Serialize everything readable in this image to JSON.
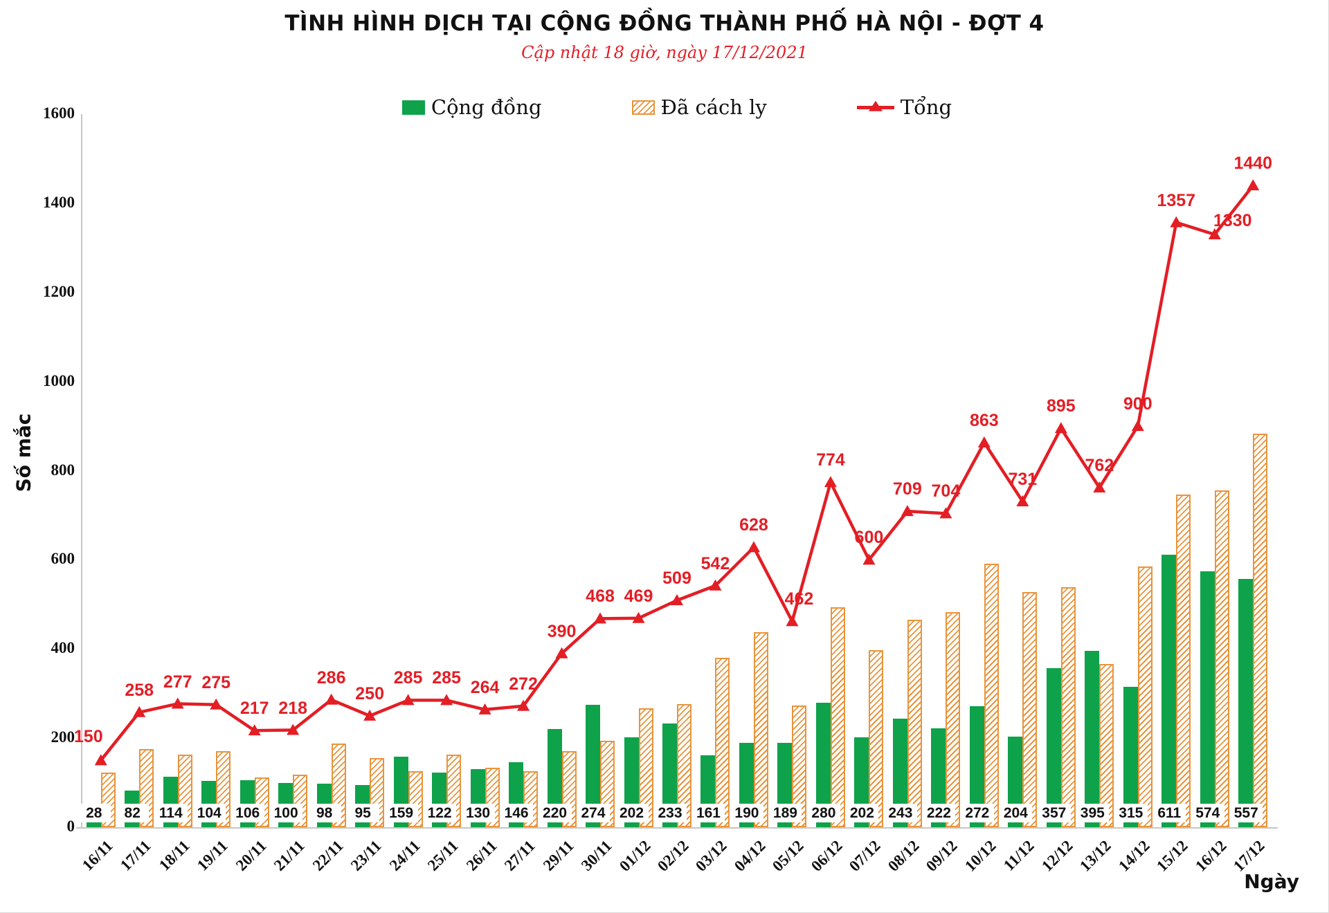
{
  "title": "TÌNH HÌNH DỊCH TẠI CỘNG ĐỒNG THÀNH PHỐ HÀ NỘI - ĐỢT 4",
  "subtitle": "Cập nhật 18 giờ, ngày 17/12/2021",
  "legend": {
    "items": [
      {
        "label": "Cộng đồng",
        "type": "bar-solid",
        "color": "#0ea24b"
      },
      {
        "label": "Đã cách ly",
        "type": "bar-hatched",
        "color": "#e8943c"
      },
      {
        "label": "Tổng",
        "type": "line-triangle",
        "color": "#e31e25"
      }
    ]
  },
  "colors": {
    "community_green": "#0ea24b",
    "quarantine_orange": "#e8943c",
    "total_red": "#e31e25",
    "axis_gray": "#c6c6c6"
  },
  "chart_data": {
    "type": "bar",
    "subtype": "grouped-bars-with-line",
    "title": "TÌNH HÌNH DỊCH TẠI CỘNG ĐỒNG THÀNH PHỐ HÀ NỘI - ĐỢT 4",
    "subtitle": "Cập nhật 18 giờ, ngày 17/12/2021",
    "xlabel": "Ngày",
    "ylabel": "Số mắc",
    "ylim": [
      0,
      1600
    ],
    "yticks": [
      0,
      200,
      400,
      600,
      800,
      1000,
      1200,
      1400,
      1600
    ],
    "grid": false,
    "legend_position": "top",
    "categories": [
      "16/11",
      "17/11",
      "18/11",
      "19/11",
      "20/11",
      "21/11",
      "22/11",
      "23/11",
      "24/11",
      "25/11",
      "26/11",
      "27/11",
      "29/11",
      "30/11",
      "01/12",
      "02/12",
      "03/12",
      "04/12",
      "05/12",
      "06/12",
      "07/12",
      "08/12",
      "09/12",
      "10/12",
      "11/12",
      "12/12",
      "13/12",
      "14/12",
      "15/12",
      "16/12",
      "17/12"
    ],
    "series": [
      {
        "name": "Cộng đồng",
        "type": "bar",
        "style": "solid-green",
        "values": [
          28,
          82,
          114,
          104,
          106,
          100,
          98,
          95,
          159,
          122,
          130,
          146,
          220,
          274,
          202,
          233,
          161,
          190,
          189,
          280,
          202,
          243,
          222,
          272,
          204,
          357,
          395,
          315,
          611,
          574,
          557
        ],
        "labels_shown": true
      },
      {
        "name": "Đã cách ly",
        "type": "bar",
        "style": "hatched-orange",
        "values": [
          122,
          176,
          163,
          171,
          111,
          118,
          188,
          155,
          126,
          163,
          134,
          126,
          170,
          194,
          267,
          276,
          381,
          438,
          273,
          494,
          398,
          466,
          482,
          591,
          527,
          538,
          367,
          585,
          746,
          756,
          883
        ],
        "labels_shown": false
      },
      {
        "name": "Tổng",
        "type": "line",
        "style": "red-triangle-markers",
        "values": [
          150,
          258,
          277,
          275,
          217,
          218,
          286,
          250,
          285,
          285,
          264,
          272,
          390,
          468,
          469,
          509,
          542,
          628,
          462,
          774,
          600,
          709,
          704,
          863,
          731,
          895,
          762,
          900,
          1357,
          1330,
          1440
        ],
        "labels_shown": true
      }
    ]
  }
}
